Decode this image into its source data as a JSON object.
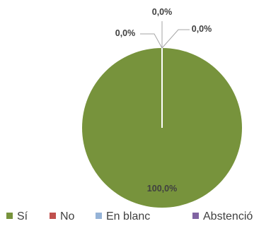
{
  "chart_data": {
    "type": "pie",
    "categories": [
      "Sí",
      "No",
      "En blanc",
      "Abstenció"
    ],
    "values": [
      100.0,
      0.0,
      0.0,
      0.0
    ],
    "data_labels": [
      "100,0%",
      "0,0%",
      "0,0%",
      "0,0%"
    ],
    "colors": [
      "#77933C",
      "#C0504D",
      "#95B3D7",
      "#8064A2"
    ],
    "legend_position": "bottom",
    "title": ""
  }
}
